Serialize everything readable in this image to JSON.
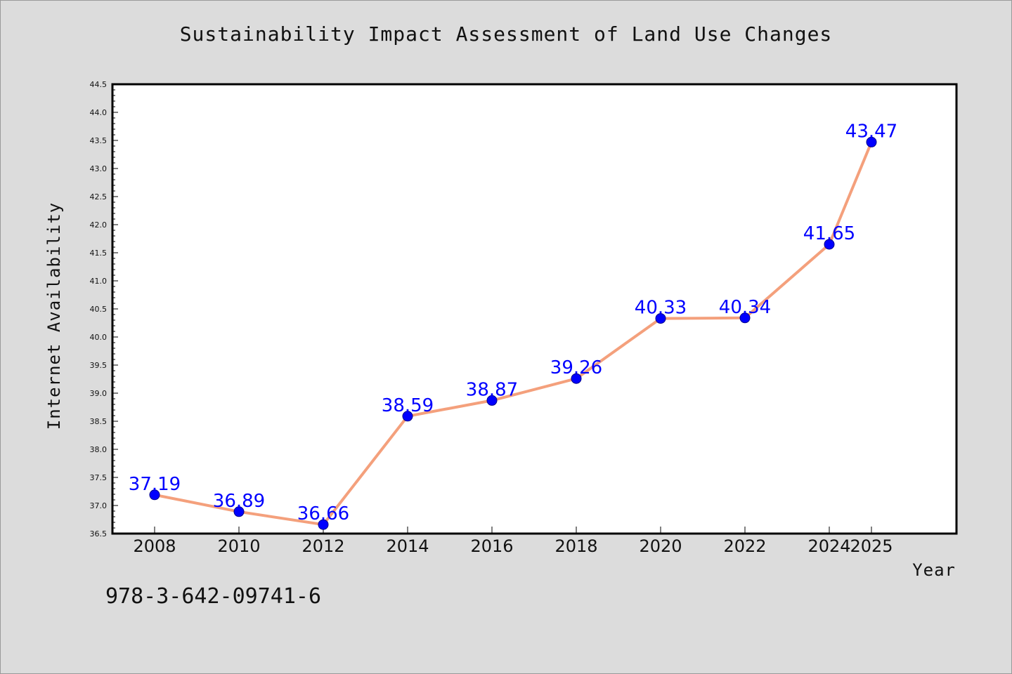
{
  "title": "Sustainability Impact Assessment of Land Use Changes",
  "footer_text": "978-3-642-09741-6",
  "colors": {
    "line": "#f4a07c",
    "marker": "#0000ff",
    "label": "#0000ff",
    "background": "#dcdcdc",
    "plot_background": "#ffffff"
  },
  "chart_data": {
    "type": "line",
    "title": "Sustainability Impact Assessment of Land Use Changes",
    "xlabel": "Year",
    "ylabel": "Internet Availability",
    "x": [
      "2008",
      "2010",
      "2012",
      "2014",
      "2016",
      "2018",
      "2020",
      "2022",
      "2024",
      "2025"
    ],
    "series": [
      {
        "values": [
          37.19,
          36.89,
          36.66,
          38.59,
          38.87,
          39.26,
          40.33,
          40.34,
          41.65,
          43.47
        ],
        "labels": [
          "37.19",
          "36.89",
          "36.66",
          "38.59",
          "38.87",
          "39.26",
          "40.33",
          "40.34",
          "41.65",
          "43.47"
        ]
      }
    ],
    "ylim": [
      36.5,
      44.5
    ],
    "yticks": [
      "36.5",
      "37.0",
      "37.5",
      "38.0",
      "38.5",
      "39.0",
      "39.5",
      "40.0",
      "40.5",
      "41.0",
      "41.5",
      "42.0",
      "42.5",
      "43.0",
      "43.5",
      "44.0",
      "44.5"
    ],
    "grid": false,
    "legend": "none"
  }
}
